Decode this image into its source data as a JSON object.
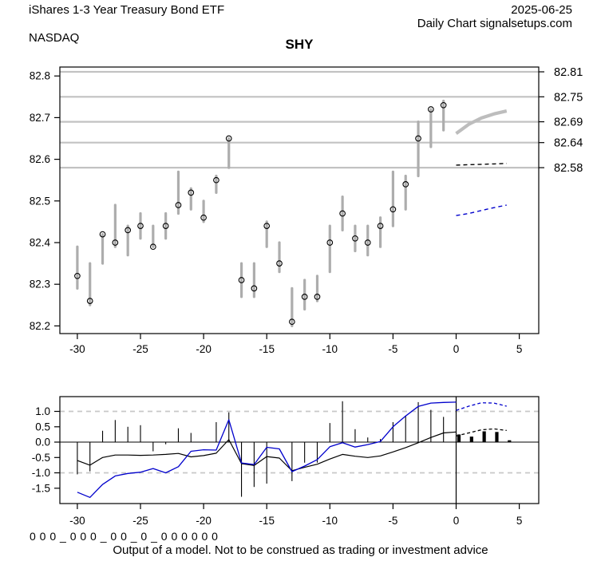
{
  "header": {
    "instrument": "iShares 1-3 Year Treasury Bond ETF",
    "date": "2025-06-25",
    "source": "Daily Chart signalsetups.com",
    "exchange": "NASDAQ",
    "symbol": "SHY"
  },
  "footer": {
    "signal_string": "0 0 0 _ 0 0 0 _ 0 0 _ 0 _ 0 0 0 0 0 0",
    "disclaimer": "Output of a model. Not to be construed as trading or investment advice"
  },
  "colors": {
    "grid": "#c2c2c2",
    "bar": "#adadad",
    "forecast_gray": "#bdbdbd",
    "blue": "#0000cc",
    "black": "#000000",
    "dashed_grid": "#c8c8c8"
  },
  "chart_data": [
    {
      "type": "scatter",
      "name": "price-panel",
      "title": "SHY",
      "xlabel": "",
      "ylabel": "",
      "xlim": [
        -31.4,
        6.5
      ],
      "ylim": [
        82.18,
        82.82
      ],
      "grid": "horizontal-gray-levels",
      "x": [
        -30,
        -29,
        -28,
        -27,
        -26,
        -25,
        -24,
        -23,
        -22,
        -21,
        -20,
        -19,
        -18,
        -17,
        -16,
        -15,
        -14,
        -13,
        -12,
        -11,
        -10,
        -9,
        -8,
        -7,
        -6,
        -5,
        -4,
        -3,
        -2,
        -1
      ],
      "close": [
        82.32,
        82.26,
        82.42,
        82.4,
        82.43,
        82.44,
        82.39,
        82.44,
        82.49,
        82.52,
        82.46,
        82.55,
        82.65,
        82.31,
        82.29,
        82.44,
        82.35,
        82.21,
        82.27,
        82.27,
        82.4,
        82.47,
        82.41,
        82.4,
        82.44,
        82.48,
        82.54,
        82.65,
        82.72,
        82.73
      ],
      "high": [
        82.39,
        82.35,
        82.42,
        82.49,
        82.44,
        82.47,
        82.44,
        82.47,
        82.57,
        82.53,
        82.5,
        82.56,
        82.65,
        82.35,
        82.35,
        82.45,
        82.4,
        82.29,
        82.31,
        82.32,
        82.44,
        82.51,
        82.44,
        82.44,
        82.46,
        82.57,
        82.56,
        82.69,
        82.72,
        82.74
      ],
      "low": [
        82.29,
        82.25,
        82.35,
        82.39,
        82.37,
        82.41,
        82.39,
        82.41,
        82.47,
        82.48,
        82.45,
        82.52,
        82.58,
        82.27,
        82.27,
        82.39,
        82.33,
        82.2,
        82.24,
        82.26,
        82.33,
        82.43,
        82.38,
        82.37,
        82.39,
        82.44,
        82.48,
        82.56,
        82.63,
        82.67
      ],
      "gridline_levels": [
        82.81,
        82.75,
        82.69,
        82.64,
        82.58
      ],
      "left_axis": {
        "labels": [
          "82.8",
          "82.7",
          "82.6",
          "82.5",
          "82.4",
          "82.3",
          "82.2"
        ],
        "values": [
          82.8,
          82.7,
          82.6,
          82.5,
          82.4,
          82.3,
          82.2
        ]
      },
      "right_axis": {
        "labels": [
          "82.81",
          "82.75",
          "82.69",
          "82.64",
          "82.58"
        ],
        "values": [
          82.81,
          82.75,
          82.69,
          82.64,
          82.58
        ]
      },
      "x_axis": {
        "labels": [
          "-30",
          "-25",
          "-20",
          "-15",
          "-10",
          "-5",
          "0",
          "5"
        ],
        "values": [
          -30,
          -25,
          -20,
          -15,
          -10,
          -5,
          0,
          5
        ]
      },
      "forecast": {
        "gray_curve": {
          "x": [
            0,
            1,
            2,
            3,
            4
          ],
          "y": [
            82.662,
            82.684,
            82.699,
            82.709,
            82.716
          ]
        },
        "black_dashed": {
          "x": [
            0,
            1,
            2,
            3,
            4
          ],
          "y": [
            82.586,
            82.587,
            82.588,
            82.589,
            82.59
          ]
        },
        "blue_dashed": {
          "x": [
            0,
            1,
            2,
            3,
            4
          ],
          "y": [
            82.465,
            82.47,
            82.477,
            82.484,
            82.49
          ]
        }
      }
    },
    {
      "type": "bar",
      "name": "oscillator-panel",
      "xlim": [
        -31.4,
        6.5
      ],
      "ylim": [
        -2.0,
        1.475
      ],
      "grid": "dashed-at-plus-minus-1",
      "x": [
        -30,
        -29,
        -28,
        -27,
        -26,
        -25,
        -24,
        -23,
        -22,
        -21,
        -20,
        -19,
        -18,
        -17,
        -16,
        -15,
        -14,
        -13,
        -12,
        -11,
        -10,
        -9,
        -8,
        -7,
        -6,
        -5,
        -4,
        -3,
        -2,
        -1
      ],
      "spikes": [
        -1.05,
        -0.95,
        0.37,
        0.72,
        0.5,
        0.55,
        -0.3,
        -0.07,
        0.45,
        0.3,
        0,
        0.65,
        0.97,
        -1.78,
        -1.46,
        -1.35,
        0,
        -1.27,
        -0.67,
        -0.67,
        0.62,
        1.33,
        0.42,
        0.15,
        0.1,
        0.65,
        0.86,
        1.3,
        1.05,
        0.82
      ],
      "line_x": [
        -30,
        -29,
        -28,
        -27,
        -26,
        -25,
        -24,
        -23,
        -22,
        -21,
        -20,
        -19,
        -18,
        -17,
        -16,
        -15,
        -14,
        -13,
        -12,
        -11,
        -10,
        -9,
        -8,
        -7,
        -6,
        -5,
        -4,
        -3,
        -2,
        -1,
        0
      ],
      "black_line": [
        -0.6,
        -0.75,
        -0.5,
        -0.42,
        -0.42,
        -0.43,
        -0.42,
        -0.4,
        -0.37,
        -0.48,
        -0.44,
        -0.36,
        0.08,
        -0.7,
        -0.76,
        -0.47,
        -0.52,
        -0.93,
        -0.82,
        -0.72,
        -0.55,
        -0.4,
        -0.46,
        -0.5,
        -0.45,
        -0.32,
        -0.18,
        -0.02,
        0.15,
        0.3,
        0.33
      ],
      "blue_line": [
        -1.63,
        -1.8,
        -1.38,
        -1.1,
        -1.02,
        -0.98,
        -0.86,
        -1.0,
        -0.8,
        -0.3,
        -0.25,
        -0.26,
        0.73,
        -0.68,
        -0.73,
        -0.17,
        -0.22,
        -0.96,
        -0.78,
        -0.57,
        -0.15,
        -0.02,
        -0.16,
        -0.08,
        0.02,
        0.5,
        0.85,
        1.16,
        1.27,
        1.29,
        1.3
      ],
      "future": {
        "x": [
          0,
          1,
          2,
          3,
          4
        ],
        "impulse_bars": [
          0.25,
          0.18,
          0.35,
          0.33,
          0.06
        ],
        "black_dashed": [
          0.2,
          0.3,
          0.4,
          0.43,
          0.38
        ],
        "blue_dashed": [
          1.03,
          1.17,
          1.28,
          1.27,
          1.17
        ]
      },
      "y_axis": {
        "labels": [
          "1.0",
          "0.5",
          "0.0",
          "-0.5",
          "-1.0",
          "-1.5"
        ],
        "values": [
          1.0,
          0.5,
          0.0,
          -0.5,
          -1.0,
          -1.5
        ]
      },
      "dashed_gridlines": [
        1.0,
        -1.0
      ],
      "x_axis": {
        "labels": [
          "-30",
          "-25",
          "-20",
          "-15",
          "-10",
          "-5",
          "0",
          "5"
        ],
        "values": [
          -30,
          -25,
          -20,
          -15,
          -10,
          -5,
          0,
          5
        ]
      }
    }
  ]
}
